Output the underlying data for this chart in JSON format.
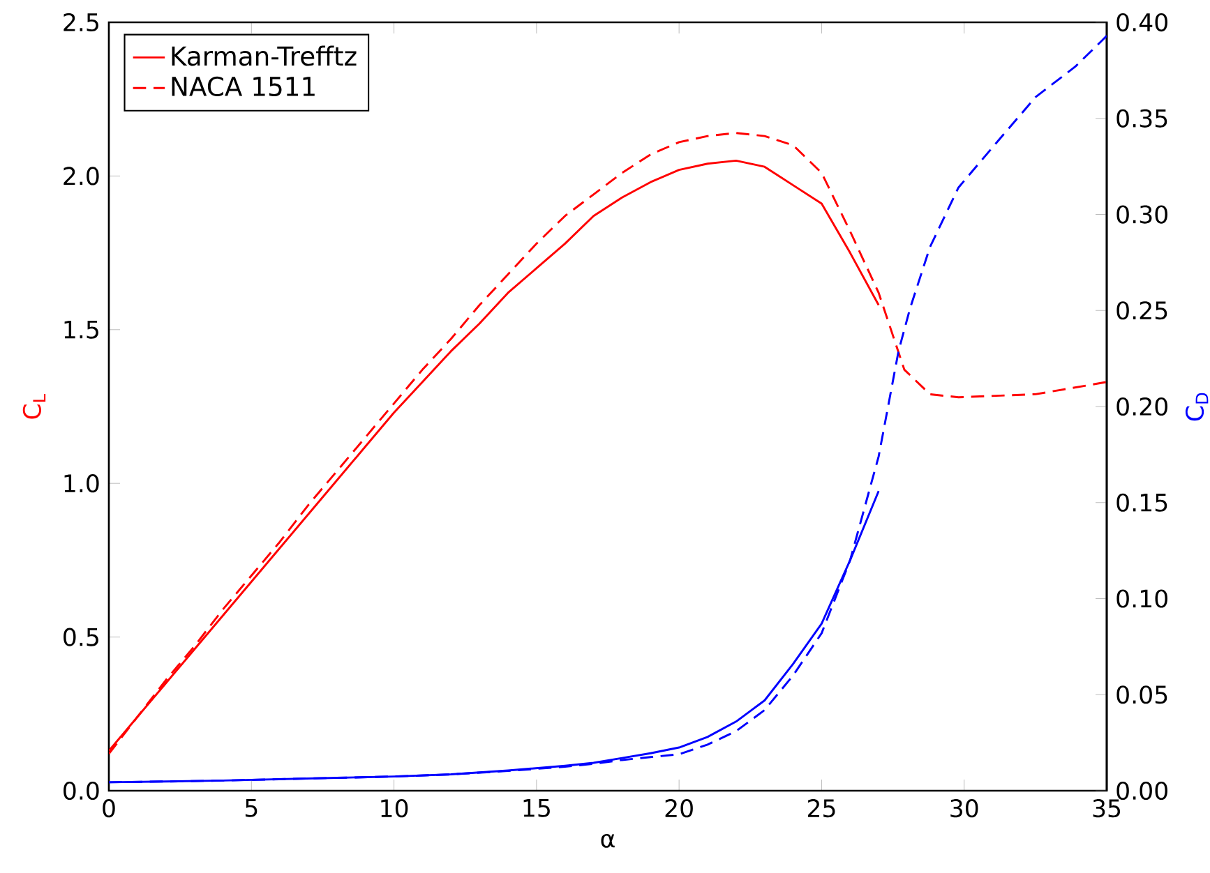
{
  "chart_data": {
    "type": "line",
    "xlabel": "α",
    "ylabel": "C$_{L}$",
    "y2label": "C$_{D}$",
    "legend": "top left",
    "marker": "none",
    "xlim": [
      0,
      35
    ],
    "xticks": [
      0,
      5,
      10,
      15,
      20,
      25,
      30,
      35
    ],
    "ylim": [
      0,
      2.5
    ],
    "yticks": [
      {
        "value": 0,
        "label": "0.0"
      },
      {
        "value": 0.5,
        "label": "0.5"
      },
      {
        "value": 1,
        "label": "1.0"
      },
      {
        "value": 1.5,
        "label": "1.5"
      },
      {
        "value": 2,
        "label": "2.0"
      },
      {
        "value": 2.5,
        "label": "2.5"
      }
    ],
    "y2lim": [
      0,
      0.4
    ],
    "y2ticks": [
      {
        "value": 0,
        "label": "0.00"
      },
      {
        "value": 0.05,
        "label": "0.05"
      },
      {
        "value": 0.1,
        "label": "0.10"
      },
      {
        "value": 0.15,
        "label": "0.15"
      },
      {
        "value": 0.2,
        "label": "0.20"
      },
      {
        "value": 0.25,
        "label": "0.25"
      },
      {
        "value": 0.3,
        "label": "0.30"
      },
      {
        "value": 0.35,
        "label": "0.35"
      },
      {
        "value": 0.4,
        "label": "0.40"
      }
    ],
    "series": [
      {
        "name": "Karman-Trefftz",
        "color": "#ff0000",
        "line_style": "solid",
        "x": [
          0,
          1,
          2,
          3,
          4,
          5,
          6,
          7,
          8,
          9,
          10,
          11,
          12,
          13,
          14,
          15,
          16,
          17,
          18,
          19,
          20,
          21,
          22,
          23,
          24,
          25,
          26,
          27
        ],
        "values": [
          0.13,
          0.24,
          0.35,
          0.46,
          0.57,
          0.68,
          0.79,
          0.9,
          1.01,
          1.12,
          1.23,
          1.33,
          1.43,
          1.52,
          1.62,
          1.7,
          1.78,
          1.87,
          1.93,
          1.98,
          2.02,
          2.04,
          2.05,
          2.03,
          1.97,
          1.91,
          1.75,
          1.58
        ]
      },
      {
        "name": "NACA 1511",
        "color": "#ff0000",
        "line_style": "dashed",
        "x": [
          0,
          1,
          2,
          3,
          4,
          5,
          6,
          7,
          8,
          9,
          10,
          11,
          12,
          13,
          14,
          15,
          16,
          17,
          18,
          19,
          20,
          21,
          22,
          23,
          24,
          25,
          26,
          27,
          27.9,
          28.8,
          29.8,
          32.5,
          34.4,
          35
        ],
        "values": [
          0.12,
          0.24,
          0.36,
          0.47,
          0.59,
          0.7,
          0.81,
          0.93,
          1.04,
          1.15,
          1.26,
          1.37,
          1.47,
          1.58,
          1.68,
          1.78,
          1.87,
          1.94,
          2.01,
          2.07,
          2.11,
          2.13,
          2.14,
          2.13,
          2.1,
          2.01,
          1.82,
          1.62,
          1.37,
          1.29,
          1.28,
          1.29,
          1.32,
          1.33
        ]
      },
      {
        "color": "#0000ff",
        "line_style": "solid",
        "axis": "y2",
        "x": [
          0,
          2,
          4,
          6,
          8,
          10,
          12,
          14,
          16,
          17,
          18,
          19,
          20,
          21,
          22,
          23,
          24,
          25,
          26,
          27
        ],
        "values": [
          0.0044,
          0.0048,
          0.0053,
          0.006,
          0.0067,
          0.0074,
          0.0085,
          0.0105,
          0.013,
          0.0145,
          0.017,
          0.0195,
          0.0225,
          0.028,
          0.036,
          0.047,
          0.066,
          0.087,
          0.12,
          0.156
        ]
      },
      {
        "color": "#0000ff",
        "line_style": "dashed",
        "axis": "y2",
        "x": [
          0,
          2,
          4,
          6,
          8,
          10,
          12,
          14,
          16,
          17,
          18,
          19,
          20,
          21,
          22,
          23,
          24,
          25,
          26,
          27,
          27.7,
          28.1,
          28.8,
          29.8,
          31,
          32.5,
          33.9,
          34.8,
          35
        ],
        "values": [
          0.0044,
          0.0048,
          0.0053,
          0.006,
          0.0067,
          0.0074,
          0.0085,
          0.0103,
          0.0125,
          0.014,
          0.016,
          0.0175,
          0.019,
          0.024,
          0.031,
          0.042,
          0.06,
          0.082,
          0.12,
          0.174,
          0.229,
          0.251,
          0.283,
          0.314,
          0.335,
          0.361,
          0.377,
          0.39,
          0.393
        ]
      }
    ]
  }
}
